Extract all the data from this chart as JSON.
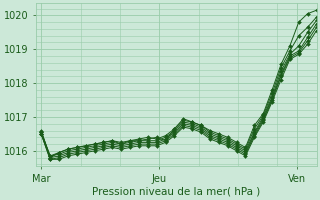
{
  "background_color": "#cce8d8",
  "grid_color": "#99ccaa",
  "line_color": "#1a5c1a",
  "marker_color": "#1a5c1a",
  "xlabel": "Pression niveau de la mer( hPa )",
  "xtick_labels": [
    "Mar",
    "Jeu",
    "Ven"
  ],
  "xtick_positions": [
    0,
    0.4286,
    0.9286
  ],
  "ytick_labels": [
    "1016",
    "1017",
    "1018",
    "1019",
    "1020"
  ],
  "ylim": [
    1015.55,
    1020.35
  ],
  "xlim": [
    -0.02,
    1.0
  ],
  "series": [
    [
      1016.6,
      1015.8,
      1015.95,
      1016.05,
      1016.1,
      1016.15,
      1016.2,
      1016.25,
      1016.3,
      1016.2,
      1016.3,
      1016.3,
      1016.35,
      1016.4,
      1016.3,
      1016.65,
      1016.95,
      1016.85,
      1016.75,
      1016.6,
      1016.5,
      1016.4,
      1016.25,
      1016.1,
      1016.75,
      1017.1,
      1017.8,
      1018.55,
      1019.1,
      1019.8,
      1020.05,
      1020.15
    ],
    [
      1016.55,
      1015.85,
      1015.95,
      1016.05,
      1016.1,
      1016.15,
      1016.2,
      1016.25,
      1016.3,
      1016.25,
      1016.3,
      1016.35,
      1016.4,
      1016.35,
      1016.45,
      1016.65,
      1016.9,
      1016.85,
      1016.75,
      1016.55,
      1016.45,
      1016.35,
      1016.2,
      1016.05,
      1016.65,
      1017.05,
      1017.7,
      1018.45,
      1018.95,
      1019.4,
      1019.65,
      1019.95
    ],
    [
      1016.55,
      1015.85,
      1015.9,
      1016.0,
      1016.05,
      1016.1,
      1016.15,
      1016.2,
      1016.25,
      1016.2,
      1016.25,
      1016.3,
      1016.3,
      1016.3,
      1016.4,
      1016.6,
      1016.85,
      1016.8,
      1016.7,
      1016.5,
      1016.4,
      1016.3,
      1016.15,
      1016.0,
      1016.55,
      1017.0,
      1017.6,
      1018.35,
      1018.85,
      1019.1,
      1019.5,
      1019.85
    ],
    [
      1016.5,
      1015.8,
      1015.85,
      1015.95,
      1016.0,
      1016.05,
      1016.1,
      1016.15,
      1016.2,
      1016.15,
      1016.2,
      1016.25,
      1016.25,
      1016.25,
      1016.35,
      1016.55,
      1016.8,
      1016.75,
      1016.65,
      1016.45,
      1016.35,
      1016.25,
      1016.1,
      1015.95,
      1016.5,
      1016.95,
      1017.55,
      1018.25,
      1018.8,
      1018.95,
      1019.35,
      1019.75
    ],
    [
      1016.5,
      1015.75,
      1015.8,
      1015.9,
      1015.95,
      1016.0,
      1016.05,
      1016.1,
      1016.15,
      1016.1,
      1016.15,
      1016.2,
      1016.2,
      1016.2,
      1016.3,
      1016.5,
      1016.75,
      1016.7,
      1016.6,
      1016.4,
      1016.3,
      1016.2,
      1016.05,
      1015.9,
      1016.45,
      1016.9,
      1017.5,
      1018.2,
      1018.75,
      1018.9,
      1019.25,
      1019.65
    ],
    [
      1016.5,
      1015.75,
      1015.75,
      1015.85,
      1015.9,
      1015.95,
      1016.0,
      1016.05,
      1016.1,
      1016.05,
      1016.1,
      1016.15,
      1016.15,
      1016.15,
      1016.25,
      1016.45,
      1016.7,
      1016.65,
      1016.55,
      1016.35,
      1016.25,
      1016.15,
      1016.0,
      1015.85,
      1016.4,
      1016.85,
      1017.45,
      1018.1,
      1018.7,
      1018.85,
      1019.15,
      1019.55
    ]
  ]
}
